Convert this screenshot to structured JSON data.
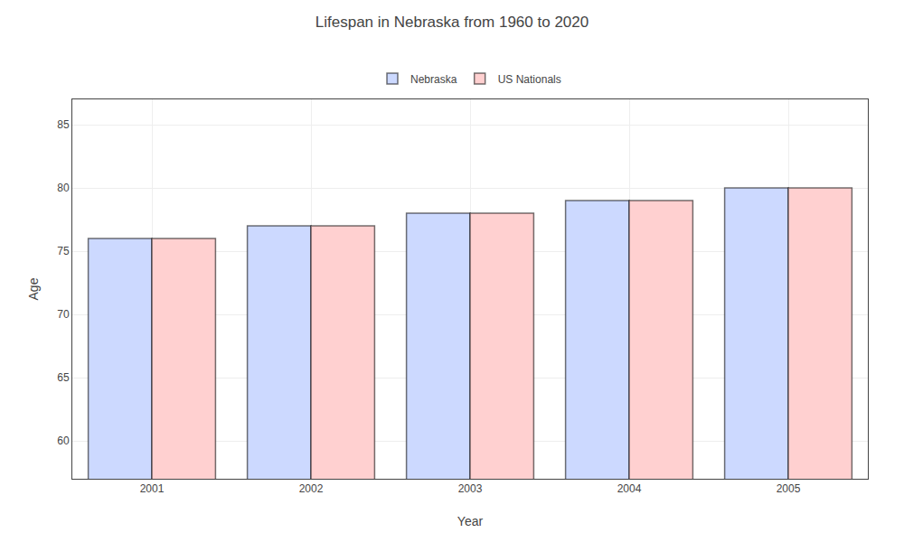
{
  "chart_data": {
    "type": "bar",
    "title": "Lifespan in Nebraska from 1960 to 2020",
    "x_label": "Year",
    "y_label": "Age",
    "categories": [
      "2001",
      "2002",
      "2003",
      "2004",
      "2005"
    ],
    "series": [
      {
        "name": "Nebraska",
        "color": "#ccd9ff",
        "values": [
          76,
          77,
          78,
          79,
          80
        ]
      },
      {
        "name": "US Nationals",
        "color": "#ffd0d0",
        "values": [
          76,
          77,
          78,
          79,
          80
        ]
      }
    ],
    "ylim": [
      57,
      87
    ],
    "yticks": [
      60,
      65,
      70,
      75,
      80,
      85
    ],
    "grid": true,
    "legend": "upper center"
  }
}
